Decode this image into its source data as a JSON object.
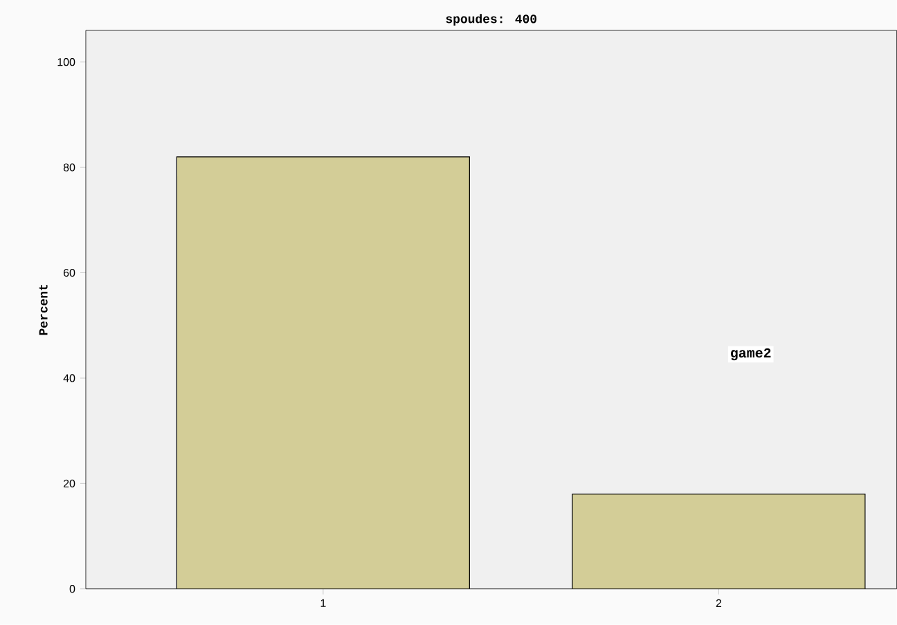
{
  "chart_data": {
    "type": "bar",
    "title": "spoudes: 400",
    "ylabel": "Percent",
    "categories": [
      "1",
      "2"
    ],
    "values": [
      82,
      18
    ],
    "color": "#d3cd97",
    "ylim": [
      0,
      106
    ],
    "yticks": [
      0,
      20,
      40,
      60,
      80,
      100
    ],
    "annotations": [
      "game2"
    ],
    "grid": false
  }
}
